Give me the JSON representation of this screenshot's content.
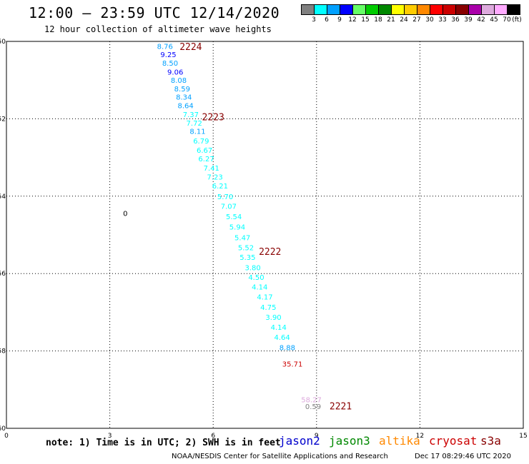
{
  "header": {
    "title": "12:00 – 23:59 UTC 12/14/2020",
    "subtitle": "12 hour collection of altimeter wave heights"
  },
  "legend": {
    "colors": [
      "#808080",
      "#00ffff",
      "#00a0ff",
      "#0000ff",
      "#66ff66",
      "#00cc00",
      "#008800",
      "#ffff00",
      "#ffcc00",
      "#ff8800",
      "#ff0000",
      "#cc0000",
      "#880000",
      "#aa00aa",
      "#ddaadd",
      "#ffaaff",
      "#000000"
    ],
    "labels": [
      "3",
      "6",
      "9",
      "12",
      "15",
      "18",
      "21",
      "24",
      "27",
      "30",
      "33",
      "36",
      "39",
      "42",
      "45",
      "70"
    ],
    "unit": "(ft)"
  },
  "chart_data": {
    "type": "scatter",
    "xlim": [
      0,
      15
    ],
    "ylim": [
      -60,
      -50
    ],
    "x_ticks": [
      "0",
      "3",
      "6",
      "9",
      "12",
      "15"
    ],
    "y_ticks": [
      "-50",
      "-52",
      "-54",
      "-56",
      "-58",
      "-60"
    ],
    "grid": true,
    "points": [
      {
        "x": 4.6,
        "y": -50.12,
        "label": "8.76",
        "color": "#00a0ff"
      },
      {
        "x": 4.7,
        "y": -50.33,
        "label": "9.25",
        "color": "#0000ff"
      },
      {
        "x": 4.75,
        "y": -50.55,
        "label": "8.50",
        "color": "#00a0ff"
      },
      {
        "x": 4.9,
        "y": -50.78,
        "label": "9.06",
        "color": "#0000ff"
      },
      {
        "x": 5.0,
        "y": -51.0,
        "label": "8.08",
        "color": "#00a0ff"
      },
      {
        "x": 5.1,
        "y": -51.22,
        "label": "8.59",
        "color": "#00a0ff"
      },
      {
        "x": 5.15,
        "y": -51.43,
        "label": "8.34",
        "color": "#00a0ff"
      },
      {
        "x": 5.2,
        "y": -51.65,
        "label": "8.64",
        "color": "#00a0ff"
      },
      {
        "x": 5.35,
        "y": -51.88,
        "label": "7.37",
        "color": "#00ffff"
      },
      {
        "x": 5.45,
        "y": -52.1,
        "label": "7.72",
        "color": "#00ffff"
      },
      {
        "x": 5.55,
        "y": -52.32,
        "label": "8.11",
        "color": "#00a0ff"
      },
      {
        "x": 5.65,
        "y": -52.56,
        "label": "6.79",
        "color": "#00ffff"
      },
      {
        "x": 5.75,
        "y": -52.8,
        "label": "6.67",
        "color": "#00ffff"
      },
      {
        "x": 5.8,
        "y": -53.03,
        "label": "6.27",
        "color": "#00ffff"
      },
      {
        "x": 5.95,
        "y": -53.27,
        "label": "7.41",
        "color": "#00ffff"
      },
      {
        "x": 6.05,
        "y": -53.5,
        "label": "7.23",
        "color": "#00ffff"
      },
      {
        "x": 6.2,
        "y": -53.73,
        "label": "6.21",
        "color": "#00ffff"
      },
      {
        "x": 6.35,
        "y": -54.0,
        "label": "5.70",
        "color": "#00ffff"
      },
      {
        "x": 6.45,
        "y": -54.25,
        "label": "7.07",
        "color": "#00ffff"
      },
      {
        "x": 6.6,
        "y": -54.52,
        "label": "5.54",
        "color": "#00ffff"
      },
      {
        "x": 6.7,
        "y": -54.79,
        "label": "5.94",
        "color": "#00ffff"
      },
      {
        "x": 6.85,
        "y": -55.06,
        "label": "5.47",
        "color": "#00ffff"
      },
      {
        "x": 6.95,
        "y": -55.32,
        "label": "5.52",
        "color": "#00ffff"
      },
      {
        "x": 7.0,
        "y": -55.57,
        "label": "5.35",
        "color": "#00ffff"
      },
      {
        "x": 7.15,
        "y": -55.84,
        "label": "3.80",
        "color": "#00ffff"
      },
      {
        "x": 7.25,
        "y": -56.09,
        "label": "4.50",
        "color": "#00ffff"
      },
      {
        "x": 7.35,
        "y": -56.34,
        "label": "4.14",
        "color": "#00ffff"
      },
      {
        "x": 7.5,
        "y": -56.6,
        "label": "4.17",
        "color": "#00ffff"
      },
      {
        "x": 7.6,
        "y": -56.86,
        "label": "4.75",
        "color": "#00ffff"
      },
      {
        "x": 7.75,
        "y": -57.12,
        "label": "3.90",
        "color": "#00ffff"
      },
      {
        "x": 7.9,
        "y": -57.38,
        "label": "4.14",
        "color": "#00ffff"
      },
      {
        "x": 8.0,
        "y": -57.64,
        "label": "4.64",
        "color": "#00ffff"
      },
      {
        "x": 8.15,
        "y": -57.91,
        "label": "8.88",
        "color": "#00a0ff"
      },
      {
        "x": 8.3,
        "y": -58.33,
        "label": "35.71",
        "color": "#cc0000"
      },
      {
        "x": 8.85,
        "y": -59.25,
        "label": "58.27",
        "color": "#ddaadd"
      },
      {
        "x": 8.9,
        "y": -59.43,
        "label": "0.59",
        "color": "#808080"
      },
      {
        "x": 3.45,
        "y": -54.44,
        "label": "0",
        "color": "#000000"
      }
    ],
    "track_labels": [
      {
        "x": 5.35,
        "y": -50.13,
        "label": "2224",
        "color": "#880000"
      },
      {
        "x": 6.0,
        "y": -51.95,
        "label": "2223",
        "color": "#880000"
      },
      {
        "x": 7.65,
        "y": -55.42,
        "label": "2222",
        "color": "#880000"
      },
      {
        "x": 9.7,
        "y": -59.42,
        "label": "2221",
        "color": "#880000"
      }
    ]
  },
  "footer": {
    "note": "note: 1) Time is in UTC; 2) SWH is in feet",
    "satellites": [
      {
        "name": "jason2",
        "color": "#0000cc"
      },
      {
        "name": "jason3",
        "color": "#008800"
      },
      {
        "name": "altika",
        "color": "#ff8800"
      },
      {
        "name": "cryosat",
        "color": "#cc0000"
      },
      {
        "name": "s3a",
        "color": "#880000"
      }
    ],
    "credit": "NOAA/NESDIS Center for Satellite Applications and Research",
    "timestamp": "Dec 17 08:29:46 UTC 2020"
  }
}
